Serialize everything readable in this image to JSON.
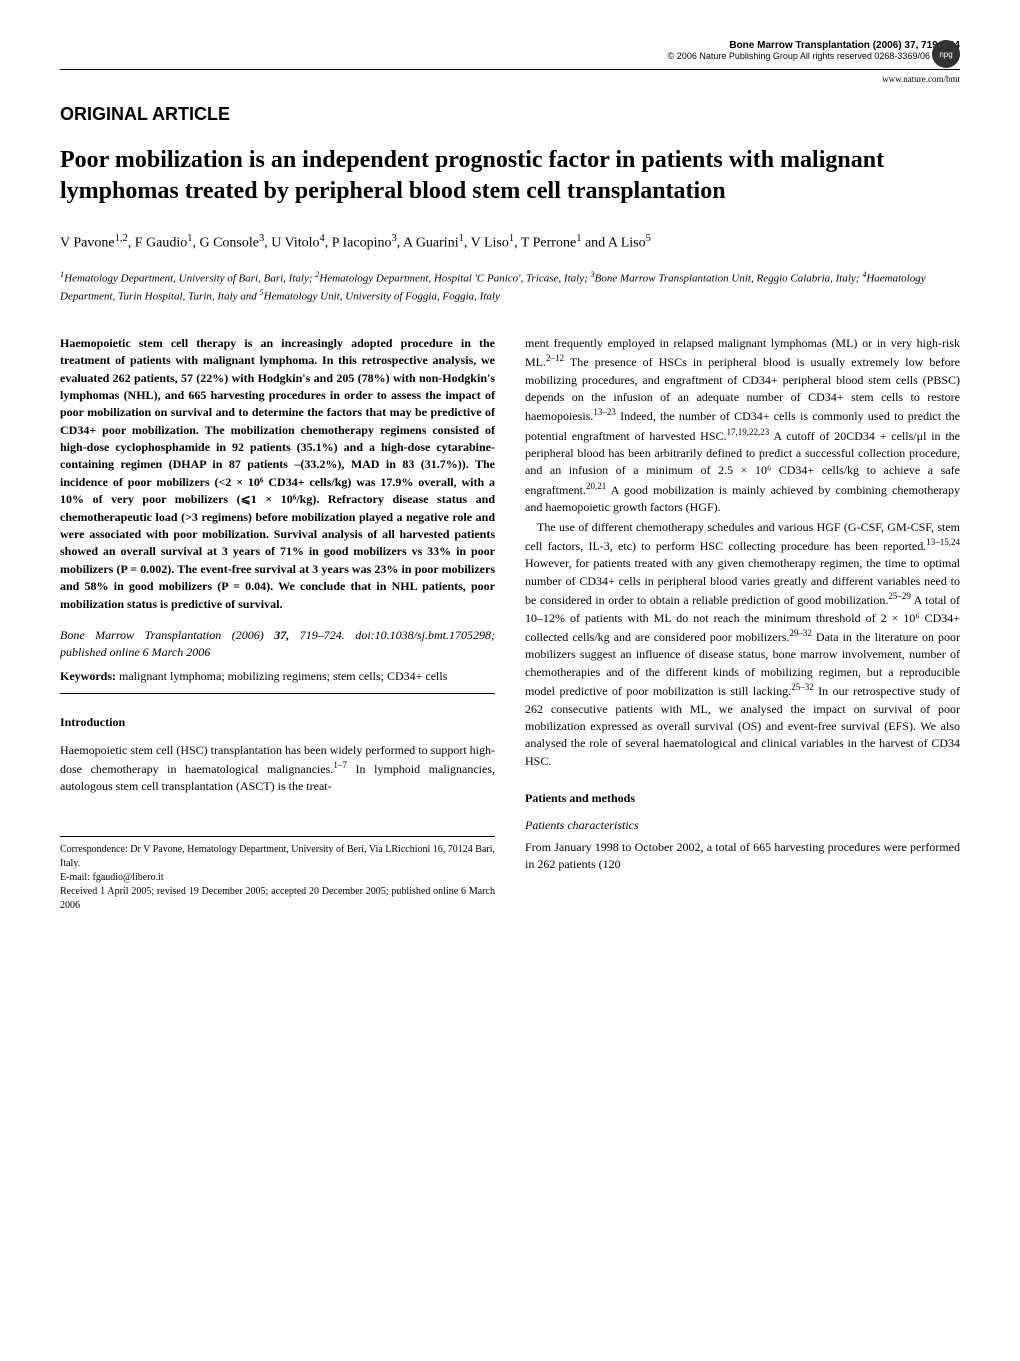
{
  "header": {
    "journal": "Bone Marrow Transplantation (2006) 37, 719–724",
    "copyright": "© 2006 Nature Publishing Group   All rights reserved 0268-3369/06 $30.00",
    "url": "www.nature.com/bmt",
    "logo": "npg"
  },
  "article_type": "ORIGINAL ARTICLE",
  "title": "Poor mobilization is an independent prognostic factor in patients with malignant lymphomas treated by peripheral blood stem cell transplantation",
  "authors_html": "V Pavone<sup>1,2</sup>, F Gaudio<sup>1</sup>, G Console<sup>3</sup>, U Vitolo<sup>4</sup>, P Iacopino<sup>3</sup>, A Guarini<sup>1</sup>, V Liso<sup>1</sup>, T Perrone<sup>1</sup> and A Liso<sup>5</sup>",
  "affiliations_html": "<sup>1</sup>Hematology Department, University of Bari, Bari, Italy; <sup>2</sup>Hematology Department, Hospital 'C Panico', Tricase, Italy; <sup>3</sup>Bone Marrow Transplantation Unit, Reggio Calabria, Italy; <sup>4</sup>Haematology Department, Turin Hospital, Turin, Italy and <sup>5</sup>Hematology Unit, University of Foggia, Foggia, Italy",
  "abstract": "Haemopoietic stem cell therapy is an increasingly adopted procedure in the treatment of patients with malignant lymphoma. In this retrospective analysis, we evaluated 262 patients, 57 (22%) with Hodgkin's and 205 (78%) with non-Hodgkin's lymphomas (NHL), and 665 harvesting procedures in order to assess the impact of poor mobilization on survival and to determine the factors that may be predictive of CD34+ poor mobilization. The mobilization chemotherapy regimens consisted of high-dose cyclophosphamide in 92 patients (35.1%) and a high-dose cytarabine-containing regimen (DHAP in 87 patients –(33.2%), MAD in 83 (31.7%)). The incidence of poor mobilizers (<2 × 10⁶ CD34+ cells/kg) was 17.9% overall, with a 10% of very poor mobilizers (⩽1 × 10⁶/kg). Refractory disease status and chemotherapeutic load (>3 regimens) before mobilization played a negative role and were associated with poor mobilization. Survival analysis of all harvested patients showed an overall survival at 3 years of 71% in good mobilizers vs 33% in poor mobilizers (P = 0.002). The event-free survival at 3 years was 23% in poor mobilizers and 58% in good mobilizers (P = 0.04). We conclude that in NHL patients, poor mobilization status is predictive of survival.",
  "citation_html": "<i>Bone Marrow Transplantation</i> (2006) <b>37,</b> 719–724. doi:10.1038/sj.bmt.1705298; published online 6 March 2006",
  "keywords_label": "Keywords:",
  "keywords": "malignant lymphoma; mobilizing regimens; stem cells; CD34+ cells",
  "section_intro": "Introduction",
  "intro_para_html": "Haemopoietic stem cell (HSC) transplantation has been widely performed to support high-dose chemotherapy in haematological malignancies.<sup>1–7</sup> In lymphoid malignancies, autologous stem cell transplantation (ASCT) is the treat-",
  "right_col_p1_html": "ment frequently employed in relapsed malignant lymphomas (ML) or in very high-risk ML.<sup>2–12</sup> The presence of HSCs in peripheral blood is usually extremely low before mobilizing procedures, and engraftment of CD34+ peripheral blood stem cells (PBSC) depends on the infusion of an adequate number of CD34+ stem cells to restore haemopoiesis.<sup>13–23</sup> Indeed, the number of CD34+ cells is commonly used to predict the potential engraftment of harvested HSC.<sup>17,19,22,23</sup> A cutoff of 20CD34 + cells/μl in the peripheral blood has been arbitrarily defined to predict a successful collection procedure, and an infusion of a minimum of 2.5 × 10⁶ CD34+ cells/kg to achieve a safe engraftment.<sup>20,21</sup> A good mobilization is mainly achieved by combining chemotherapy and haemopoietic growth factors (HGF).",
  "right_col_p2_html": "The use of different chemotherapy schedules and various HGF (G-CSF, GM-CSF, stem cell factors, IL-3, etc) to perform HSC collecting procedure has been reported.<sup>13–15,24</sup> However, for patients treated with any given chemotherapy regimen, the time to optimal number of CD34+ cells in peripheral blood varies greatly and different variables need to be considered in order to obtain a reliable prediction of good mobilization.<sup>25–29</sup> A total of 10–12% of patients with ML do not reach the minimum threshold of 2 × 10⁶ CD34+ collected cells/kg and are considered poor mobilizers.<sup>29–32</sup> Data in the literature on poor mobilizers suggest an influence of disease status, bone marrow involvement, number of chemotherapies and of the different kinds of mobilizing regimen, but a reproducible model predictive of poor mobilization is still lacking.<sup>25–32</sup> In our retrospective study of 262 consecutive patients with ML, we analysed the impact on survival of poor mobilization expressed as overall survival (OS) and event-free survival (EFS). We also analysed the role of several haematological and clinical variables in the harvest of CD34 HSC.",
  "section_methods": "Patients and methods",
  "subsection_patients": "Patients characteristics",
  "methods_p1": "From January 1998 to October 2002, a total of 665 harvesting procedures were performed in 262 patients (120",
  "footer": {
    "correspondence": "Correspondence: Dr V Pavone, Hematology Department, University of Beri, Via LRicchioni 16, 70124 Bari, Italy.",
    "email": "E-mail: fgaudio@libero.it",
    "received": "Received 1 April 2005; revised 19 December 2005; accepted 20 December 2005; published online 6 March 2006"
  }
}
